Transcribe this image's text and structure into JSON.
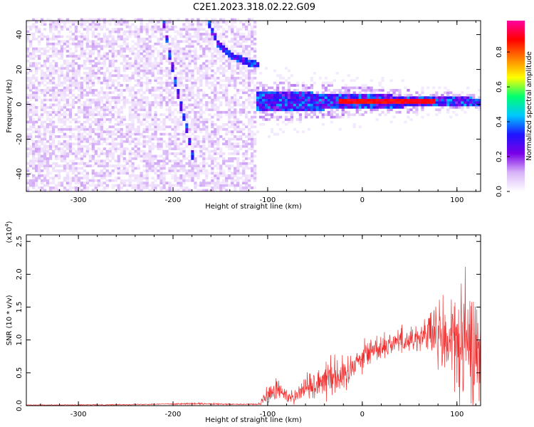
{
  "title": "C2E1.2023.318.02.22.G09",
  "chart_data": [
    {
      "type": "heatmap",
      "xlabel": "Height of straight line (km)",
      "ylabel": "Frequency (Hz)",
      "xlim": [
        -355,
        125
      ],
      "ylim": [
        -50,
        48
      ],
      "x_ticks": [
        -300,
        -200,
        -100,
        0,
        100
      ],
      "y_ticks": [
        -40,
        -20,
        0,
        20,
        40
      ],
      "colorbar": {
        "label": "Normalized spectral amplitude",
        "range": [
          0,
          0.98
        ],
        "ticks": [
          0.0,
          0.2,
          0.4,
          0.6,
          0.8
        ],
        "colors": [
          "#ffffff",
          "#d8b4f8",
          "#7a00e8",
          "#1e14ff",
          "#00c8ff",
          "#00ff70",
          "#ffff00",
          "#ff8000",
          "#ff0000",
          "#ff00a0"
        ]
      },
      "features": [
        {
          "name": "noise region",
          "x_range": [
            -355,
            -112
          ],
          "freq_range": [
            -50,
            48
          ],
          "amplitude": 0.05
        },
        {
          "name": "streak A",
          "points": [
            [
              -212,
              48
            ],
            [
              -205,
              28
            ],
            [
              -196,
              5
            ],
            [
              -188,
              -12
            ],
            [
              -180,
              -32
            ]
          ],
          "amplitude": 0.25
        },
        {
          "name": "streak B",
          "points": [
            [
              -165,
              48
            ],
            [
              -155,
              35
            ],
            [
              -140,
              27
            ],
            [
              -125,
              24
            ],
            [
              -112,
              22
            ]
          ],
          "amplitude": 0.22
        },
        {
          "name": "main band",
          "x_range": [
            -112,
            125
          ],
          "center_freq": 1,
          "band_width_hz": [
            12,
            4
          ],
          "amplitude": 0.3
        },
        {
          "name": "carrier line",
          "x_range": [
            -25,
            75
          ],
          "center_freq": 1,
          "amplitude": 0.92
        }
      ]
    },
    {
      "type": "line",
      "xlabel": "Height of straight line (km)",
      "ylabel": "SNR (10 * v/v)",
      "y_scale_label": "(x10",
      "y_scale_exp": "4",
      "y_scale_close": ")",
      "xlim": [
        -355,
        125
      ],
      "ylim": [
        0,
        2.6
      ],
      "x_ticks": [
        -300,
        -200,
        -100,
        0,
        100
      ],
      "y_ticks": [
        0.0,
        0.5,
        1.0,
        1.5,
        2.0,
        2.5
      ],
      "series": [
        {
          "color": "#f03030",
          "x": [
            -355,
            -300,
            -250,
            -210,
            -180,
            -140,
            -110,
            -100,
            -90,
            -80,
            -70,
            -60,
            -50,
            -40,
            -30,
            -20,
            -10,
            0,
            10,
            20,
            30,
            40,
            50,
            60,
            70,
            80,
            90,
            100,
            110,
            125
          ],
          "envelope_mean": [
            0.01,
            0.01,
            0.015,
            0.025,
            0.03,
            0.02,
            0.02,
            0.15,
            0.25,
            0.15,
            0.15,
            0.3,
            0.3,
            0.45,
            0.5,
            0.4,
            0.65,
            0.75,
            0.85,
            0.9,
            0.95,
            1.0,
            1.0,
            1.05,
            1.1,
            1.05,
            1.0,
            0.95,
            0.9,
            0.85
          ],
          "envelope_spread": [
            0.005,
            0.008,
            0.008,
            0.01,
            0.015,
            0.01,
            0.01,
            0.15,
            0.2,
            0.12,
            0.12,
            0.2,
            0.25,
            0.3,
            0.35,
            0.3,
            0.25,
            0.25,
            0.2,
            0.2,
            0.2,
            0.2,
            0.2,
            0.25,
            0.3,
            0.6,
            0.8,
            0.9,
            0.9,
            0.9
          ]
        }
      ]
    }
  ]
}
